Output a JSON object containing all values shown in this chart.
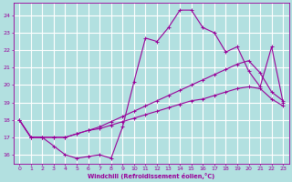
{
  "background_color": "#b2e0e0",
  "grid_color": "#ffffff",
  "line_color": "#990099",
  "xlabel": "Windchill (Refroidissement éolien,°C)",
  "xlim": [
    -0.5,
    23.5
  ],
  "ylim": [
    15.5,
    24.7
  ],
  "yticks": [
    16,
    17,
    18,
    19,
    20,
    21,
    22,
    23,
    24
  ],
  "xticks": [
    0,
    1,
    2,
    3,
    4,
    5,
    6,
    7,
    8,
    9,
    10,
    11,
    12,
    13,
    14,
    15,
    16,
    17,
    18,
    19,
    20,
    21,
    22,
    23
  ],
  "line1_x": [
    0,
    1,
    2,
    3,
    4,
    5,
    6,
    7,
    8,
    9,
    10,
    11,
    12,
    13,
    14,
    15,
    16,
    17,
    18,
    19,
    20,
    21,
    22,
    23
  ],
  "line1_y": [
    18.0,
    17.0,
    17.0,
    16.5,
    16.0,
    15.8,
    15.9,
    16.0,
    15.8,
    17.6,
    20.2,
    22.7,
    22.5,
    23.3,
    24.3,
    24.3,
    23.3,
    23.0,
    21.9,
    22.2,
    20.8,
    19.9,
    22.2,
    19.0
  ],
  "line2_x": [
    0,
    1,
    2,
    3,
    4,
    5,
    6,
    7,
    8,
    9,
    10,
    11,
    12,
    13,
    14,
    15,
    16,
    17,
    18,
    19,
    20,
    21,
    22,
    23
  ],
  "line2_y": [
    18.0,
    17.0,
    17.0,
    17.0,
    17.0,
    17.2,
    17.4,
    17.6,
    17.9,
    18.2,
    18.5,
    18.8,
    19.1,
    19.4,
    19.7,
    20.0,
    20.3,
    20.6,
    20.9,
    21.2,
    21.4,
    20.7,
    19.6,
    19.1
  ],
  "line3_x": [
    0,
    1,
    2,
    3,
    4,
    5,
    6,
    7,
    8,
    9,
    10,
    11,
    12,
    13,
    14,
    15,
    16,
    17,
    18,
    19,
    20,
    21,
    22,
    23
  ],
  "line3_y": [
    18.0,
    17.0,
    17.0,
    17.0,
    17.0,
    17.2,
    17.4,
    17.5,
    17.7,
    17.9,
    18.1,
    18.3,
    18.5,
    18.7,
    18.9,
    19.1,
    19.2,
    19.4,
    19.6,
    19.8,
    19.9,
    19.8,
    19.2,
    18.8
  ]
}
